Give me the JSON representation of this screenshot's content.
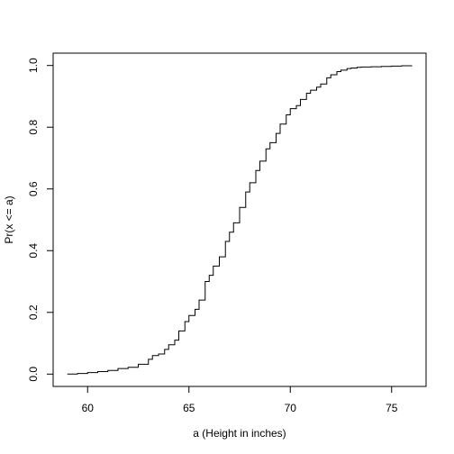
{
  "chart_data": {
    "type": "line",
    "title": "",
    "xlabel": "a (Height in inches)",
    "ylabel": "Pr(x <= a)",
    "xlim": [
      58.3,
      76.7
    ],
    "ylim": [
      -0.04,
      1.04
    ],
    "xticks": [
      60,
      65,
      70,
      75
    ],
    "yticks": [
      0.0,
      0.2,
      0.4,
      0.6,
      0.8,
      1.0
    ],
    "xtick_labels": [
      "60",
      "65",
      "70",
      "75"
    ],
    "ytick_labels": [
      "0.0",
      "0.2",
      "0.4",
      "0.6",
      "0.8",
      "1.0"
    ],
    "grid": false,
    "line_color": "#000000",
    "x": [
      59.0,
      59.5,
      60.0,
      60.5,
      61.0,
      61.5,
      62.0,
      62.5,
      63.0,
      63.2,
      63.5,
      63.8,
      64.0,
      64.3,
      64.5,
      64.8,
      65.0,
      65.3,
      65.5,
      65.8,
      66.0,
      66.2,
      66.5,
      66.8,
      67.0,
      67.2,
      67.5,
      67.8,
      68.0,
      68.3,
      68.5,
      68.8,
      69.0,
      69.3,
      69.5,
      69.8,
      70.0,
      70.3,
      70.5,
      70.8,
      71.0,
      71.3,
      71.5,
      71.8,
      72.0,
      72.3,
      72.5,
      72.8,
      73.0,
      73.3,
      73.5,
      74.0,
      74.5,
      75.0,
      75.5,
      76.0
    ],
    "y": [
      0.0,
      0.002,
      0.005,
      0.008,
      0.012,
      0.018,
      0.022,
      0.032,
      0.048,
      0.06,
      0.065,
      0.08,
      0.095,
      0.11,
      0.14,
      0.17,
      0.19,
      0.21,
      0.24,
      0.3,
      0.32,
      0.35,
      0.38,
      0.43,
      0.46,
      0.49,
      0.54,
      0.59,
      0.62,
      0.66,
      0.69,
      0.73,
      0.75,
      0.78,
      0.81,
      0.84,
      0.86,
      0.87,
      0.89,
      0.91,
      0.92,
      0.93,
      0.94,
      0.96,
      0.97,
      0.98,
      0.985,
      0.99,
      0.992,
      0.994,
      0.995,
      0.996,
      0.997,
      0.998,
      0.999,
      1.0
    ]
  }
}
